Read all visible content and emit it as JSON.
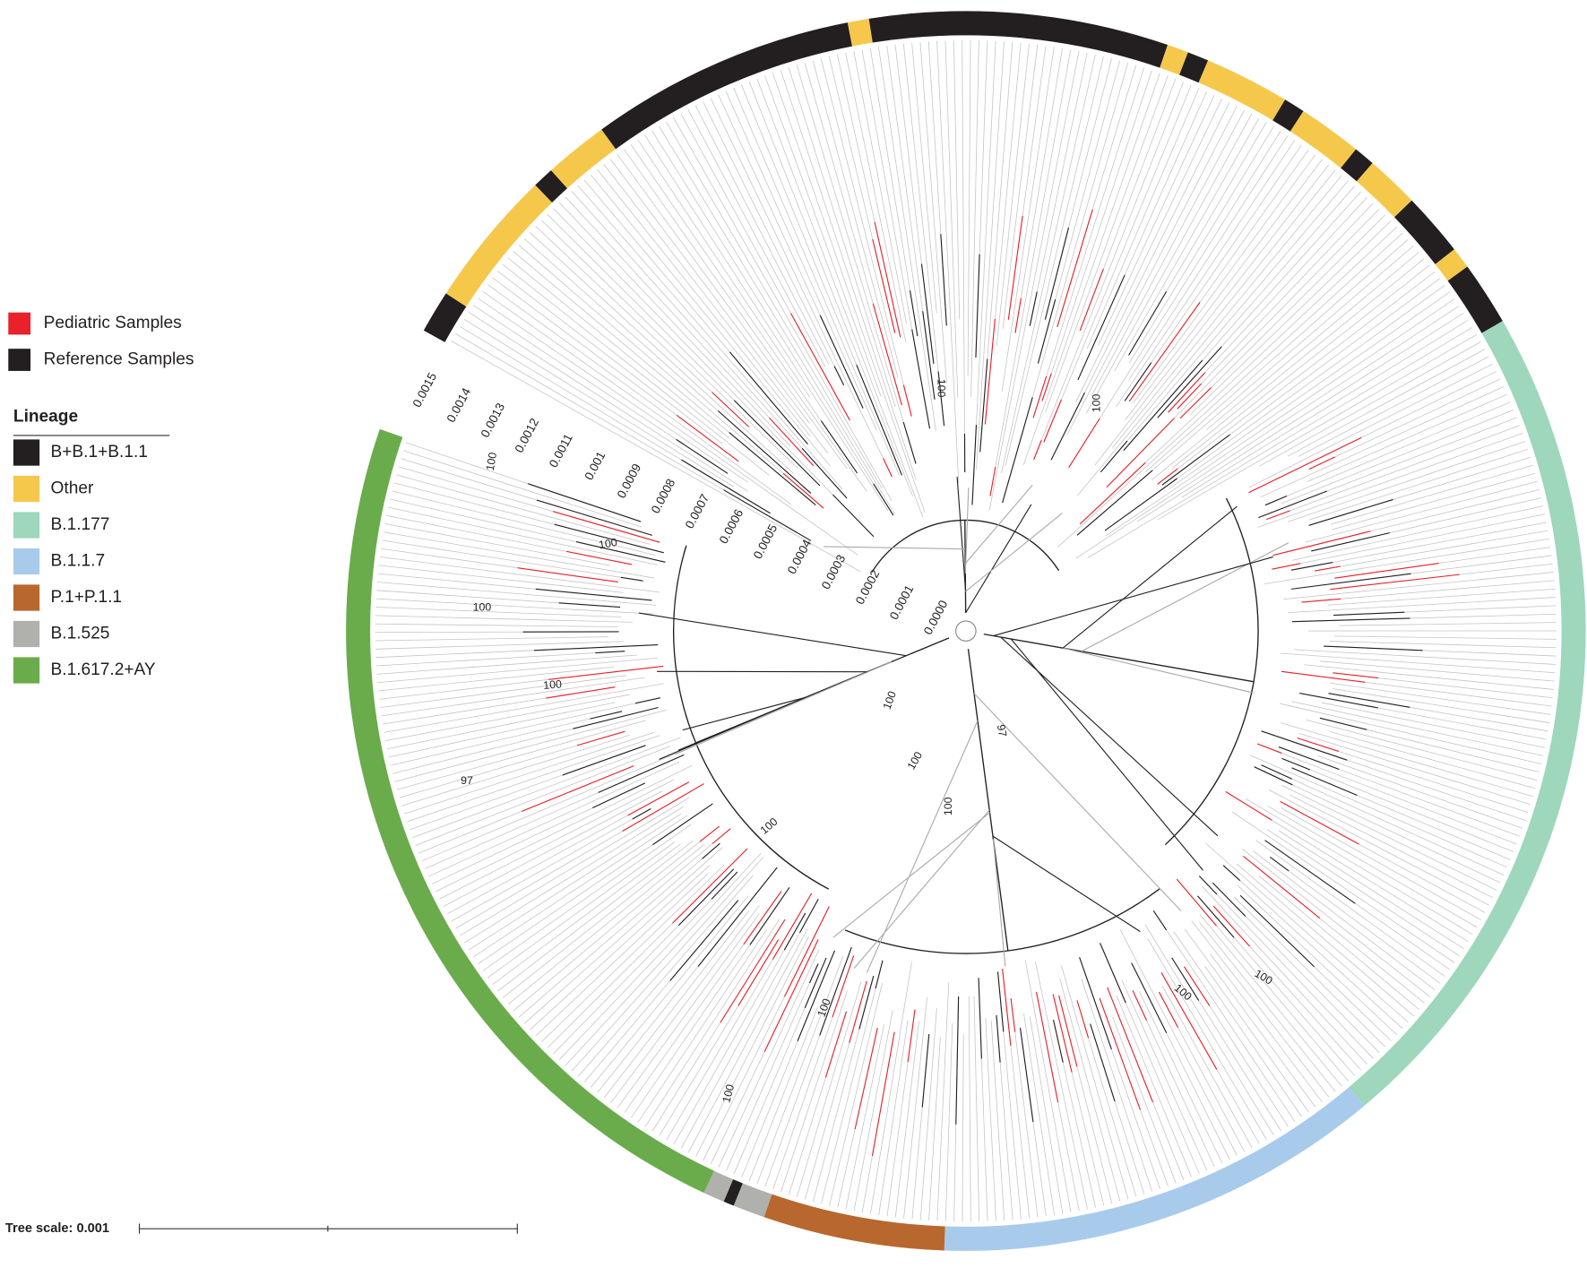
{
  "legend_samples": [
    {
      "label": "Pediatric Samples",
      "color": "#e8212a"
    },
    {
      "label": "Reference Samples",
      "color": "#231f20"
    }
  ],
  "lineage": {
    "title": "Lineage",
    "items": [
      {
        "label": "B+B.1+B.1.1",
        "color": "#231f20"
      },
      {
        "label": "Other",
        "color": "#f5c84c"
      },
      {
        "label": "B.1.177",
        "color": "#9ed7bc"
      },
      {
        "label": "B.1.1.7",
        "color": "#a8cbec"
      },
      {
        "label": "P.1+P.1.1",
        "color": "#b8682e"
      },
      {
        "label": "B.1.525",
        "color": "#b0b0ad"
      },
      {
        "label": "B.1.617.2+AY",
        "color": "#6aac4c"
      }
    ]
  },
  "distance_axis": {
    "ticks": [
      "0.0000",
      "0.0001",
      "0.0002",
      "0.0003",
      "0.0004",
      "0.0005",
      "0.0006",
      "0.0007",
      "0.0008",
      "0.0009",
      "0.001",
      "0.0011",
      "0.0012",
      "0.0013",
      "0.0014",
      "0.0015"
    ]
  },
  "tree_scale": {
    "label": "Tree scale: 0.001"
  },
  "bootstrap_labels": [
    "100",
    "100",
    "100",
    "100",
    "97",
    "100",
    "100",
    "100",
    "97",
    "100",
    "100",
    "100",
    "100",
    "100",
    "100",
    "100"
  ]
}
